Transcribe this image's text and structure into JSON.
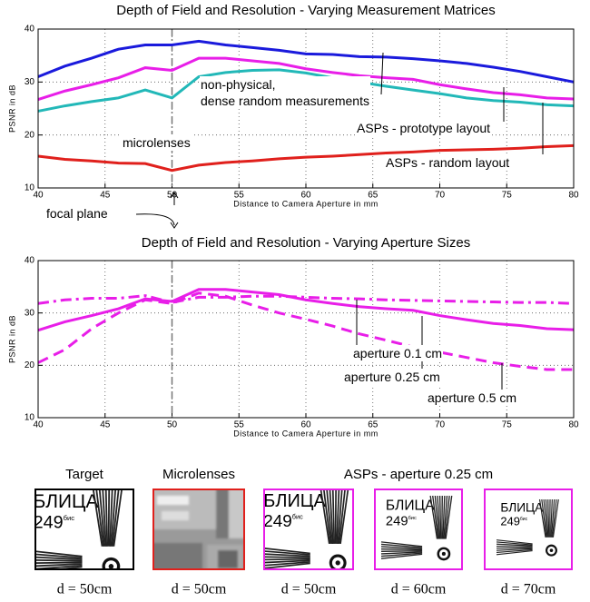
{
  "chart_data": [
    {
      "type": "line",
      "title": "Depth of Field and Resolution - Varying Measurement Matrices",
      "xlabel": "Distance to Camera Aperture in mm",
      "ylabel": "PSNR in dB",
      "x": [
        40,
        42,
        44,
        46,
        48,
        50,
        52,
        54,
        56,
        58,
        60,
        62,
        64,
        66,
        68,
        70,
        72,
        74,
        76,
        78,
        80
      ],
      "xlim": [
        40,
        80
      ],
      "xticks": [
        40,
        45,
        50,
        55,
        60,
        65,
        70,
        75,
        80
      ],
      "ylim": [
        10,
        40
      ],
      "yticks": [
        10,
        20,
        30,
        40
      ],
      "grid": true,
      "vline_x": 50,
      "annotation": "focal plane",
      "series": [
        {
          "name": "non-physical,\ndense random measurements",
          "color": "#1a1adc",
          "linestyle": "solid",
          "values": [
            31,
            33,
            34.5,
            36.2,
            37,
            37,
            37.7,
            37,
            36.5,
            36,
            35.3,
            35.2,
            34.8,
            34.7,
            34.4,
            34,
            33.5,
            32.8,
            32,
            31,
            30
          ]
        },
        {
          "name": "ASPs - prototype layout",
          "color": "#e81ee8",
          "linestyle": "solid",
          "values": [
            26.7,
            28.3,
            29.5,
            30.8,
            32.7,
            32.2,
            34.5,
            34.5,
            34,
            33.5,
            32.5,
            31.8,
            31.2,
            30.8,
            30.5,
            29.5,
            28.7,
            28,
            27.6,
            27,
            26.8
          ]
        },
        {
          "name": "ASPs - random layout",
          "color": "#22b8b8",
          "linestyle": "solid",
          "values": [
            24.5,
            25.5,
            26.3,
            27,
            28.5,
            27,
            31,
            31.8,
            32.2,
            32.3,
            31.7,
            30.8,
            30,
            29.2,
            28.5,
            27.8,
            27,
            26.5,
            26.2,
            25.7,
            25.5
          ]
        },
        {
          "name": "microlenses",
          "color": "#e0201c",
          "linestyle": "solid",
          "values": [
            16,
            15.4,
            15.1,
            14.7,
            14.6,
            13.3,
            14.3,
            14.8,
            15.1,
            15.5,
            15.8,
            16,
            16.3,
            16.6,
            16.8,
            17.1,
            17.2,
            17.3,
            17.5,
            17.8,
            18
          ]
        }
      ]
    },
    {
      "type": "line",
      "title": "Depth of Field and Resolution - Varying Aperture Sizes",
      "xlabel": "Distance to Camera Aperture in mm",
      "ylabel": "PSNR in dB",
      "x": [
        40,
        42,
        44,
        46,
        48,
        50,
        52,
        54,
        56,
        58,
        60,
        62,
        64,
        66,
        68,
        70,
        72,
        74,
        76,
        78,
        80
      ],
      "xlim": [
        40,
        80
      ],
      "xticks": [
        40,
        45,
        50,
        55,
        60,
        65,
        70,
        75,
        80
      ],
      "ylim": [
        10,
        40
      ],
      "yticks": [
        10,
        20,
        30,
        40
      ],
      "grid": true,
      "vline_x": 50,
      "series": [
        {
          "name": "aperture 0.1 cm",
          "color": "#e81ee8",
          "linestyle": "dashdot",
          "values": [
            31.8,
            32.5,
            32.8,
            32.8,
            33.3,
            32,
            33,
            33,
            33.2,
            33.2,
            33,
            32.8,
            32.7,
            32.5,
            32.4,
            32.3,
            32.2,
            32.1,
            32,
            32,
            31.8
          ]
        },
        {
          "name": "aperture 0.25 cm",
          "color": "#e81ee8",
          "linestyle": "solid",
          "values": [
            26.7,
            28.3,
            29.5,
            30.8,
            32.7,
            32.2,
            34.5,
            34.5,
            34,
            33.5,
            32.5,
            31.8,
            31.2,
            30.8,
            30.5,
            29.5,
            28.7,
            28,
            27.6,
            27,
            26.8
          ]
        },
        {
          "name": "aperture 0.5 cm",
          "color": "#e81ee8",
          "linestyle": "dashed",
          "values": [
            20.5,
            23,
            27,
            30,
            32.5,
            31.8,
            33.8,
            33.2,
            31.5,
            30,
            28.8,
            27.5,
            26,
            24.8,
            23.5,
            22.5,
            21.5,
            20.5,
            19.8,
            19.2,
            19.2
          ]
        }
      ]
    }
  ],
  "images": {
    "titles": [
      "Target",
      "Microlenses",
      "ASPs - aperture 0.25 cm"
    ],
    "captions": [
      "d = 50cm",
      "d = 50cm",
      "d = 50cm",
      "d = 60cm",
      "d = 70cm"
    ],
    "sign_word": "БЛИЦА",
    "sign_number": "249",
    "sign_suffix": "бис"
  }
}
